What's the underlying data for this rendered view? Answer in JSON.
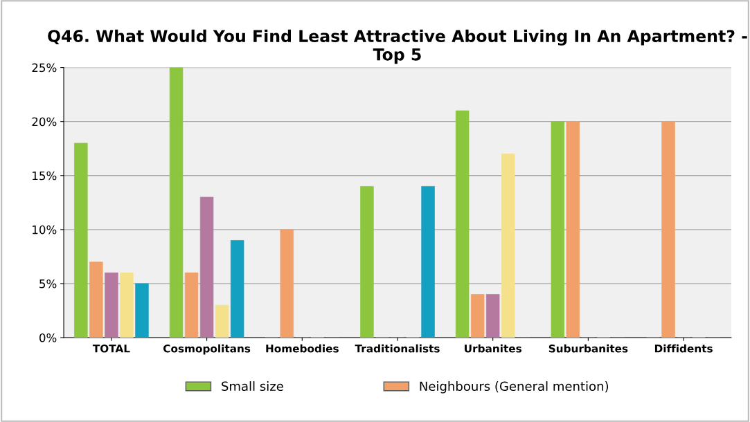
{
  "chart_data": {
    "type": "bar",
    "title": "Q46. What Would You Find Least Attractive About Living In An Apartment? - Top 5",
    "categories": [
      "TOTAL",
      "Cosmopolitans",
      "Homebodies",
      "Traditionalists",
      "Urbanites",
      "Suburbanites",
      "Diffidents"
    ],
    "series": [
      {
        "name": "Small size",
        "color": "#8cc63e",
        "values": [
          18,
          25,
          0,
          14,
          21,
          20,
          0
        ]
      },
      {
        "name": "Neighbours (General mention)",
        "color": "#f2a06a",
        "values": [
          7,
          6,
          10,
          0,
          4,
          20,
          20
        ]
      },
      {
        "color": "#b5789e",
        "values": [
          6,
          13,
          0,
          0,
          4,
          0,
          0
        ]
      },
      {
        "color": "#f5e08c",
        "values": [
          6,
          3,
          0,
          0,
          17,
          0,
          0
        ]
      },
      {
        "color": "#14a0c0",
        "values": [
          5,
          9,
          0,
          14,
          0,
          0,
          0
        ]
      }
    ],
    "ylim": [
      0,
      25
    ],
    "yticks": [
      {
        "value": 0,
        "label": "0%"
      },
      {
        "value": 5,
        "label": "5%"
      },
      {
        "value": 10,
        "label": "10%"
      },
      {
        "value": 15,
        "label": "15%"
      },
      {
        "value": 20,
        "label": "20%"
      },
      {
        "value": 25,
        "label": "25%"
      }
    ],
    "grid": "y",
    "legend": "bottom"
  }
}
